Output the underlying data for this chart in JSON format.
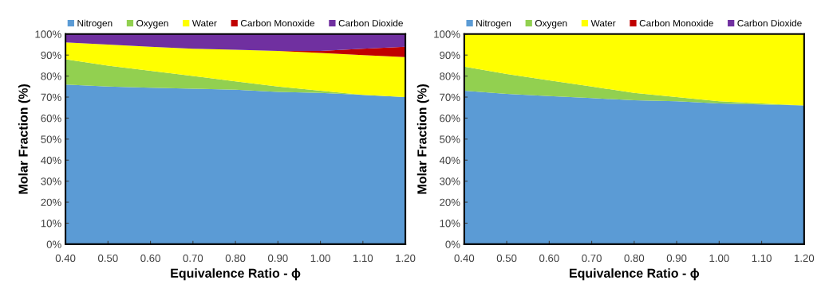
{
  "chart_data": [
    {
      "type": "area",
      "stacked": true,
      "xlabel": "Equivalence Ratio - ϕ",
      "ylabel": "Molar Fraction (%)",
      "legend": "top",
      "grid": false,
      "x": [
        0.4,
        0.5,
        0.6,
        0.7,
        0.8,
        0.9,
        1.0,
        1.1,
        1.2
      ],
      "xlim": [
        0.4,
        1.2
      ],
      "xticks": [
        {
          "value": 0.4,
          "label": "0.40"
        },
        {
          "value": 0.5,
          "label": "0.50"
        },
        {
          "value": 0.6,
          "label": "0.60"
        },
        {
          "value": 0.7,
          "label": "0.70"
        },
        {
          "value": 0.8,
          "label": "0.80"
        },
        {
          "value": 0.9,
          "label": "0.90"
        },
        {
          "value": 1.0,
          "label": "1.00"
        },
        {
          "value": 1.1,
          "label": "1.10"
        },
        {
          "value": 1.2,
          "label": "1.20"
        }
      ],
      "ylim": [
        0,
        100
      ],
      "yticks": [
        {
          "value": 0,
          "label": "0%"
        },
        {
          "value": 10,
          "label": "10%"
        },
        {
          "value": 20,
          "label": "20%"
        },
        {
          "value": 30,
          "label": "30%"
        },
        {
          "value": 40,
          "label": "40%"
        },
        {
          "value": 50,
          "label": "50%"
        },
        {
          "value": 60,
          "label": "60%"
        },
        {
          "value": 70,
          "label": "70%"
        },
        {
          "value": 80,
          "label": "80%"
        },
        {
          "value": 90,
          "label": "90%"
        },
        {
          "value": 100,
          "label": "100%"
        }
      ],
      "series": [
        {
          "name": "Nitrogen",
          "color": "#5b9bd5",
          "values": [
            76,
            75,
            74.5,
            74,
            73.5,
            72.5,
            72,
            71,
            70
          ]
        },
        {
          "name": "Oxygen",
          "color": "#92d050",
          "values": [
            12,
            10,
            8,
            6,
            4,
            2.5,
            1,
            0,
            0
          ]
        },
        {
          "name": "Water",
          "color": "#ffff00",
          "values": [
            8,
            10,
            11.5,
            13,
            15,
            17,
            18,
            19,
            19
          ]
        },
        {
          "name": "Carbon Monoxide",
          "color": "#c00000",
          "values": [
            0,
            0,
            0,
            0,
            0,
            0,
            1,
            3,
            5
          ]
        },
        {
          "name": "Carbon Dioxide",
          "color": "#7030a0",
          "values": [
            4,
            5,
            6,
            7,
            7.5,
            8,
            8,
            7,
            6
          ]
        }
      ]
    },
    {
      "type": "area",
      "stacked": true,
      "xlabel": "Equivalence Ratio - ϕ",
      "ylabel": "Molar Fraction (%)",
      "legend": "top",
      "grid": false,
      "x": [
        0.4,
        0.5,
        0.6,
        0.7,
        0.8,
        0.9,
        1.0,
        1.1,
        1.2
      ],
      "xlim": [
        0.4,
        1.2
      ],
      "xticks": [
        {
          "value": 0.4,
          "label": "0.40"
        },
        {
          "value": 0.5,
          "label": "0.50"
        },
        {
          "value": 0.6,
          "label": "0.60"
        },
        {
          "value": 0.7,
          "label": "0.70"
        },
        {
          "value": 0.8,
          "label": "0.80"
        },
        {
          "value": 0.9,
          "label": "0.90"
        },
        {
          "value": 1.0,
          "label": "1.00"
        },
        {
          "value": 1.1,
          "label": "1.10"
        },
        {
          "value": 1.2,
          "label": "1.20"
        }
      ],
      "ylim": [
        0,
        100
      ],
      "yticks": [
        {
          "value": 0,
          "label": "0%"
        },
        {
          "value": 10,
          "label": "10%"
        },
        {
          "value": 20,
          "label": "20%"
        },
        {
          "value": 30,
          "label": "30%"
        },
        {
          "value": 40,
          "label": "40%"
        },
        {
          "value": 50,
          "label": "50%"
        },
        {
          "value": 60,
          "label": "60%"
        },
        {
          "value": 70,
          "label": "70%"
        },
        {
          "value": 80,
          "label": "80%"
        },
        {
          "value": 90,
          "label": "90%"
        },
        {
          "value": 100,
          "label": "100%"
        }
      ],
      "series": [
        {
          "name": "Nitrogen",
          "color": "#5b9bd5",
          "values": [
            73,
            71.5,
            70.5,
            69.5,
            68.5,
            68,
            67,
            66.5,
            66
          ]
        },
        {
          "name": "Oxygen",
          "color": "#92d050",
          "values": [
            11.5,
            9.5,
            7.5,
            5.5,
            3.5,
            2,
            1,
            0.5,
            0
          ]
        },
        {
          "name": "Water",
          "color": "#ffff00",
          "values": [
            15.5,
            19,
            22,
            25,
            28,
            30,
            32,
            33,
            34
          ]
        },
        {
          "name": "Carbon Monoxide",
          "color": "#c00000",
          "values": [
            null,
            null,
            null,
            null,
            null,
            null,
            null,
            null,
            null
          ]
        },
        {
          "name": "Carbon Dioxide",
          "color": "#7030a0",
          "values": [
            null,
            null,
            null,
            null,
            null,
            null,
            null,
            null,
            null
          ]
        }
      ]
    }
  ]
}
